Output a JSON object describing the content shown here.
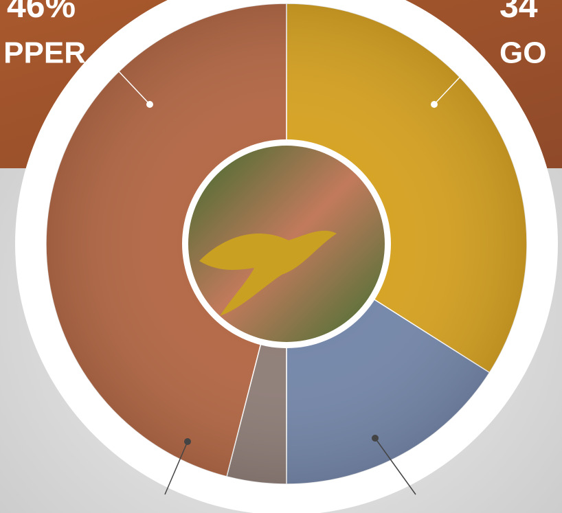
{
  "chart_data": {
    "type": "donut",
    "categories": [
      "GO",
      null,
      null,
      "PPER"
    ],
    "values": [
      34,
      16,
      4,
      46
    ],
    "value_labels": [
      "34",
      null,
      null,
      "46%"
    ],
    "colors": [
      "#d6a325",
      "#7688aa",
      "#91807a",
      "#b46a48"
    ]
  }
}
